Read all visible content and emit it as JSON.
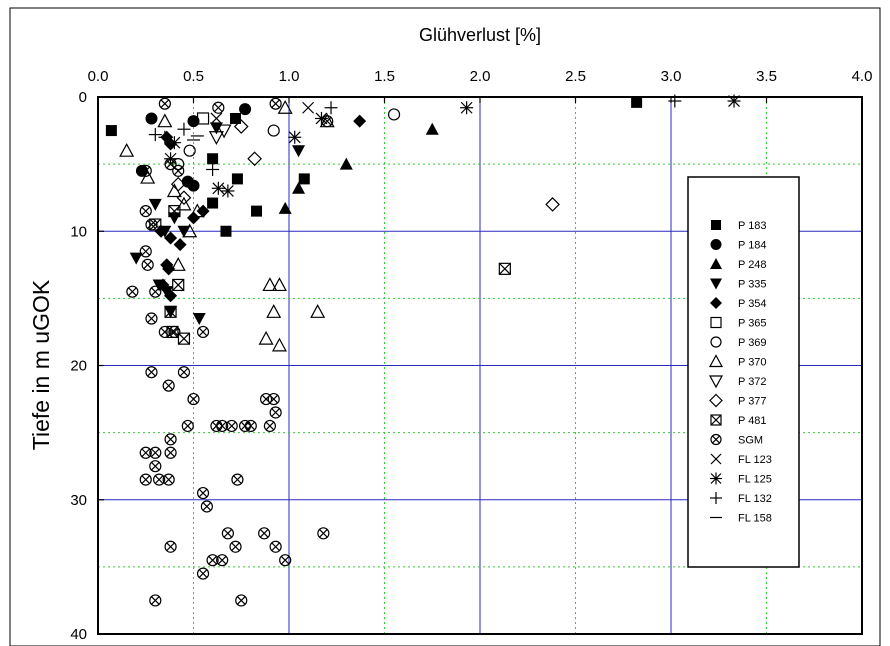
{
  "chart_data": {
    "type": "scatter",
    "title": "",
    "xlabel": "Glühverlust [%]",
    "ylabel": "Tiefe in m uGOK",
    "x_axis_position": "top",
    "y_axis_inverted": true,
    "xlim": [
      0.0,
      4.0
    ],
    "ylim": [
      0,
      40
    ],
    "x_ticks": [
      "0.0",
      "0.5",
      "1.0",
      "1.5",
      "2.0",
      "2.5",
      "3.0",
      "3.5",
      "4.0"
    ],
    "x_tick_values": [
      0,
      0.5,
      1,
      1.5,
      2,
      2.5,
      3,
      3.5,
      4
    ],
    "y_ticks": [
      "0",
      "10",
      "20",
      "30",
      "40"
    ],
    "y_tick_values": [
      0,
      10,
      20,
      30,
      40
    ],
    "grid": {
      "major_color": "#2a2ac0",
      "minor_color": "#33cc33",
      "minor_style": "dotted"
    },
    "legend_position": "right",
    "series": [
      {
        "name": "P 183",
        "marker": "square-filled",
        "points": [
          [
            0.07,
            2.5
          ],
          [
            0.6,
            4.6
          ],
          [
            0.72,
            1.6
          ],
          [
            0.73,
            6.1
          ],
          [
            0.6,
            7.9
          ],
          [
            0.83,
            8.5
          ],
          [
            0.67,
            10.0
          ],
          [
            1.08,
            6.1
          ],
          [
            2.82,
            0.4
          ]
        ]
      },
      {
        "name": "P 184",
        "marker": "circle-filled",
        "points": [
          [
            0.28,
            1.6
          ],
          [
            0.23,
            5.5
          ],
          [
            0.5,
            1.8
          ],
          [
            0.77,
            0.9
          ],
          [
            0.5,
            6.6
          ],
          [
            0.47,
            6.3
          ]
        ]
      },
      {
        "name": "P 248",
        "marker": "triangle-up-filled",
        "points": [
          [
            1.75,
            2.4
          ],
          [
            1.3,
            5.0
          ],
          [
            1.05,
            6.8
          ],
          [
            0.98,
            8.3
          ]
        ]
      },
      {
        "name": "P 335",
        "marker": "triangle-down-filled",
        "points": [
          [
            0.2,
            12.0
          ],
          [
            0.3,
            8.0
          ],
          [
            0.4,
            9.0
          ],
          [
            0.35,
            10.0
          ],
          [
            0.45,
            10.0
          ],
          [
            0.32,
            14.0
          ],
          [
            0.36,
            14.5
          ],
          [
            0.38,
            16.0
          ],
          [
            0.53,
            16.5
          ],
          [
            0.62,
            2.3
          ],
          [
            1.05,
            4.0
          ]
        ]
      },
      {
        "name": "P 354",
        "marker": "diamond-filled",
        "points": [
          [
            0.36,
            3.0
          ],
          [
            0.38,
            3.5
          ],
          [
            0.33,
            10.0
          ],
          [
            0.38,
            10.5
          ],
          [
            0.43,
            11.0
          ],
          [
            0.36,
            12.5
          ],
          [
            0.36,
            12.5
          ],
          [
            0.37,
            12.8
          ],
          [
            0.34,
            14.0
          ],
          [
            0.38,
            14.8
          ],
          [
            0.5,
            9.0
          ],
          [
            0.55,
            8.5
          ],
          [
            1.37,
            1.8
          ]
        ]
      },
      {
        "name": "P 365",
        "marker": "square-open",
        "points": [
          [
            0.55,
            1.6
          ]
        ]
      },
      {
        "name": "P 369",
        "marker": "circle-open",
        "points": [
          [
            0.48,
            4.0
          ],
          [
            0.42,
            5.0
          ],
          [
            0.92,
            2.5
          ],
          [
            1.55,
            1.3
          ]
        ]
      },
      {
        "name": "P 370",
        "marker": "triangle-up-open",
        "points": [
          [
            0.15,
            4.0
          ],
          [
            0.35,
            1.8
          ],
          [
            0.26,
            6.0
          ],
          [
            0.4,
            7.0
          ],
          [
            0.45,
            8.0
          ],
          [
            0.48,
            10.0
          ],
          [
            0.42,
            12.5
          ],
          [
            0.52,
            8.5
          ],
          [
            0.9,
            14.0
          ],
          [
            0.95,
            14.0
          ],
          [
            0.92,
            16.0
          ],
          [
            0.88,
            18.0
          ],
          [
            0.95,
            18.5
          ],
          [
            1.15,
            16.0
          ],
          [
            0.98,
            0.8
          ],
          [
            1.2,
            1.8
          ]
        ]
      },
      {
        "name": "P 372",
        "marker": "triangle-down-open",
        "points": [
          [
            0.62,
            3.0
          ],
          [
            0.66,
            2.5
          ]
        ]
      },
      {
        "name": "P 377",
        "marker": "diamond-open",
        "points": [
          [
            0.75,
            2.2
          ],
          [
            0.82,
            4.6
          ],
          [
            0.42,
            6.5
          ],
          [
            0.45,
            7.5
          ],
          [
            2.38,
            8.0
          ]
        ]
      },
      {
        "name": "P 481",
        "marker": "square-cross",
        "points": [
          [
            2.13,
            12.8
          ],
          [
            0.4,
            8.5
          ],
          [
            0.3,
            9.5
          ],
          [
            0.38,
            16.0
          ],
          [
            0.45,
            18.0
          ],
          [
            0.39,
            17.5
          ],
          [
            0.42,
            14.0
          ]
        ]
      },
      {
        "name": "SGM",
        "marker": "circle-cross",
        "points": [
          [
            0.25,
            5.5
          ],
          [
            0.25,
            8.5
          ],
          [
            0.28,
            9.5
          ],
          [
            0.26,
            12.5
          ],
          [
            0.3,
            14.5
          ],
          [
            0.28,
            16.5
          ],
          [
            0.35,
            17.5
          ],
          [
            0.4,
            17.5
          ],
          [
            0.55,
            17.5
          ],
          [
            0.18,
            14.5
          ],
          [
            0.25,
            11.5
          ],
          [
            0.28,
            20.5
          ],
          [
            0.37,
            21.5
          ],
          [
            0.45,
            20.5
          ],
          [
            0.5,
            22.5
          ],
          [
            0.47,
            24.5
          ],
          [
            0.62,
            24.5
          ],
          [
            0.65,
            24.5
          ],
          [
            0.7,
            24.5
          ],
          [
            0.77,
            24.5
          ],
          [
            0.8,
            24.5
          ],
          [
            0.88,
            22.5
          ],
          [
            0.92,
            22.5
          ],
          [
            0.93,
            23.5
          ],
          [
            0.9,
            24.5
          ],
          [
            0.38,
            25.5
          ],
          [
            0.25,
            26.5
          ],
          [
            0.3,
            26.5
          ],
          [
            0.38,
            26.5
          ],
          [
            0.3,
            27.5
          ],
          [
            0.25,
            28.5
          ],
          [
            0.32,
            28.5
          ],
          [
            0.37,
            28.5
          ],
          [
            0.73,
            28.5
          ],
          [
            0.55,
            29.5
          ],
          [
            0.57,
            30.5
          ],
          [
            0.68,
            32.5
          ],
          [
            0.87,
            32.5
          ],
          [
            0.72,
            33.5
          ],
          [
            0.93,
            33.5
          ],
          [
            1.18,
            32.5
          ],
          [
            0.6,
            34.5
          ],
          [
            0.65,
            34.5
          ],
          [
            0.98,
            34.5
          ],
          [
            0.55,
            35.5
          ],
          [
            0.38,
            33.5
          ],
          [
            0.3,
            37.5
          ],
          [
            0.75,
            37.5
          ],
          [
            0.35,
            0.5
          ],
          [
            0.63,
            0.8
          ],
          [
            0.93,
            0.5
          ],
          [
            1.2,
            1.8
          ],
          [
            0.38,
            5.0
          ],
          [
            0.42,
            5.5
          ]
        ]
      },
      {
        "name": "FL 123",
        "marker": "x",
        "points": [
          [
            1.1,
            0.8
          ],
          [
            0.62,
            1.6
          ]
        ]
      },
      {
        "name": "FL 125",
        "marker": "asterisk",
        "points": [
          [
            1.03,
            3.0
          ],
          [
            0.63,
            6.8
          ],
          [
            0.68,
            7.0
          ],
          [
            1.17,
            1.6
          ],
          [
            1.93,
            0.8
          ],
          [
            3.33,
            0.3
          ],
          [
            0.4,
            3.4
          ],
          [
            0.38,
            4.6
          ]
        ]
      },
      {
        "name": "FL 132",
        "marker": "plus",
        "points": [
          [
            0.3,
            2.8
          ],
          [
            0.35,
            3.0
          ],
          [
            0.45,
            2.4
          ],
          [
            0.6,
            5.4
          ],
          [
            1.22,
            0.8
          ],
          [
            3.02,
            0.3
          ]
        ]
      },
      {
        "name": "FL 158",
        "marker": "dash",
        "points": [
          [
            0.52,
            2.9
          ],
          [
            0.5,
            3.2
          ]
        ]
      }
    ]
  }
}
